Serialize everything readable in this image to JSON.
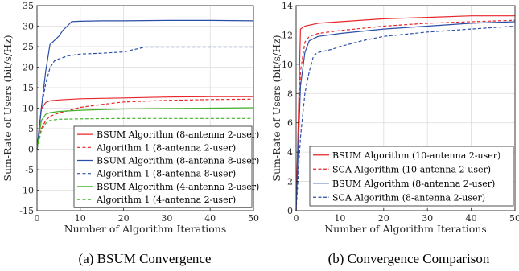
{
  "chart_data": [
    {
      "type": "line",
      "caption": "(a) BSUM Convergence",
      "xlabel": "Number of Algorithm Iterations",
      "ylabel": "Sum-Rate of Users (bit/s/Hz)",
      "xlim": [
        0,
        50
      ],
      "ylim": [
        -15,
        35
      ],
      "xticks": [
        0,
        10,
        20,
        30,
        40,
        50
      ],
      "yticks": [
        -15,
        -10,
        -5,
        0,
        5,
        10,
        15,
        20,
        25,
        30,
        35
      ],
      "grid": true,
      "legend_position": "bottom-right",
      "series": [
        {
          "name": "BSUM Algorithm (8-antenna 2-user)",
          "color": "#e8262a",
          "dash": "solid",
          "x": [
            0,
            1,
            2,
            3,
            5,
            10,
            15,
            20,
            30,
            40,
            50
          ],
          "y": [
            0,
            9.8,
            11.4,
            11.8,
            12.0,
            12.3,
            12.4,
            12.5,
            12.7,
            12.8,
            12.8
          ]
        },
        {
          "name": "Algorithm 1 (8-antenna 2-user)",
          "color": "#e8262a",
          "dash": "dashed",
          "x": [
            0,
            1,
            2,
            3,
            5,
            8,
            10,
            15,
            20,
            30,
            40,
            50
          ],
          "y": [
            0,
            5.0,
            7.0,
            8.0,
            8.8,
            9.6,
            10.2,
            10.9,
            11.5,
            11.9,
            12.1,
            12.2
          ]
        },
        {
          "name": "BSUM Algorithm (8-antenna 8-user)",
          "color": "#2b4ea8",
          "dash": "solid",
          "x": [
            0,
            1,
            2,
            3,
            4,
            5,
            6,
            7,
            8,
            10,
            15,
            20,
            30,
            40,
            50
          ],
          "y": [
            0,
            10.0,
            19.0,
            25.5,
            26.5,
            27.5,
            29.0,
            30.0,
            31.1,
            31.2,
            31.3,
            31.3,
            31.4,
            31.4,
            31.3
          ]
        },
        {
          "name": "Algorithm 1 (8-antenna 8-user)",
          "color": "#2b4ea8",
          "dash": "dashed",
          "x": [
            0,
            1,
            2,
            3,
            4,
            5,
            7,
            10,
            15,
            20,
            22,
            25,
            30,
            40,
            50
          ],
          "y": [
            0,
            10.0,
            16.0,
            19.8,
            21.5,
            22.0,
            22.7,
            23.2,
            23.4,
            23.7,
            24.2,
            24.9,
            24.9,
            24.9,
            24.9
          ]
        },
        {
          "name": "BSUM Algorithm (4-antenna 2-user)",
          "color": "#43b02a",
          "dash": "solid",
          "x": [
            0,
            1,
            2,
            3,
            5,
            10,
            20,
            30,
            40,
            50
          ],
          "y": [
            0,
            7.0,
            8.5,
            8.9,
            9.2,
            9.5,
            9.8,
            9.9,
            10.0,
            10.1
          ]
        },
        {
          "name": "Algorithm 1 (4-antenna 2-user)",
          "color": "#43b02a",
          "dash": "dashed",
          "x": [
            0,
            1,
            2,
            3,
            5,
            10,
            20,
            30,
            40,
            50
          ],
          "y": [
            0,
            4.5,
            6.3,
            7.0,
            7.3,
            7.4,
            7.5,
            7.5,
            7.5,
            7.5
          ]
        }
      ]
    },
    {
      "type": "line",
      "caption": "(b) Convergence Comparison",
      "xlabel": "Number of Algorithm Iterations",
      "ylabel": "Sum-Rate of Users (bit/s/Hz)",
      "xlim": [
        0,
        50
      ],
      "ylim": [
        0,
        14
      ],
      "xticks": [
        0,
        10,
        20,
        30,
        40,
        50
      ],
      "yticks": [
        0,
        2,
        4,
        6,
        8,
        10,
        12,
        14
      ],
      "grid": true,
      "legend_position": "bottom-right",
      "series": [
        {
          "name": "BSUM Algorithm (10-antenna 2-user)",
          "color": "#e8262a",
          "dash": "solid",
          "x": [
            0,
            1,
            2,
            5,
            10,
            20,
            30,
            40,
            50
          ],
          "y": [
            0,
            12.4,
            12.6,
            12.8,
            12.9,
            13.1,
            13.2,
            13.3,
            13.3
          ]
        },
        {
          "name": "SCA Algorithm (10-antenna 2-user)",
          "color": "#e8262a",
          "dash": "dashed",
          "x": [
            0,
            1,
            2,
            3,
            5,
            10,
            20,
            30,
            40,
            50
          ],
          "y": [
            0,
            9.5,
            11.5,
            11.9,
            12.1,
            12.3,
            12.6,
            12.8,
            12.9,
            13.0
          ]
        },
        {
          "name": "BSUM Algorithm (8-antenna 2-user)",
          "color": "#2b4ea8",
          "dash": "solid",
          "x": [
            0,
            1,
            2,
            3,
            5,
            10,
            20,
            30,
            40,
            50
          ],
          "y": [
            0,
            8.5,
            10.8,
            11.6,
            11.9,
            12.1,
            12.4,
            12.6,
            12.8,
            12.9
          ]
        },
        {
          "name": "SCA Algorithm (8-antenna 2-user)",
          "color": "#2b4ea8",
          "dash": "dashed",
          "x": [
            0,
            1,
            2,
            3,
            4,
            5,
            8,
            10,
            15,
            20,
            30,
            40,
            50
          ],
          "y": [
            0,
            5.0,
            8.0,
            9.5,
            10.6,
            10.8,
            11.0,
            11.2,
            11.6,
            11.9,
            12.2,
            12.4,
            12.6
          ]
        }
      ]
    }
  ]
}
